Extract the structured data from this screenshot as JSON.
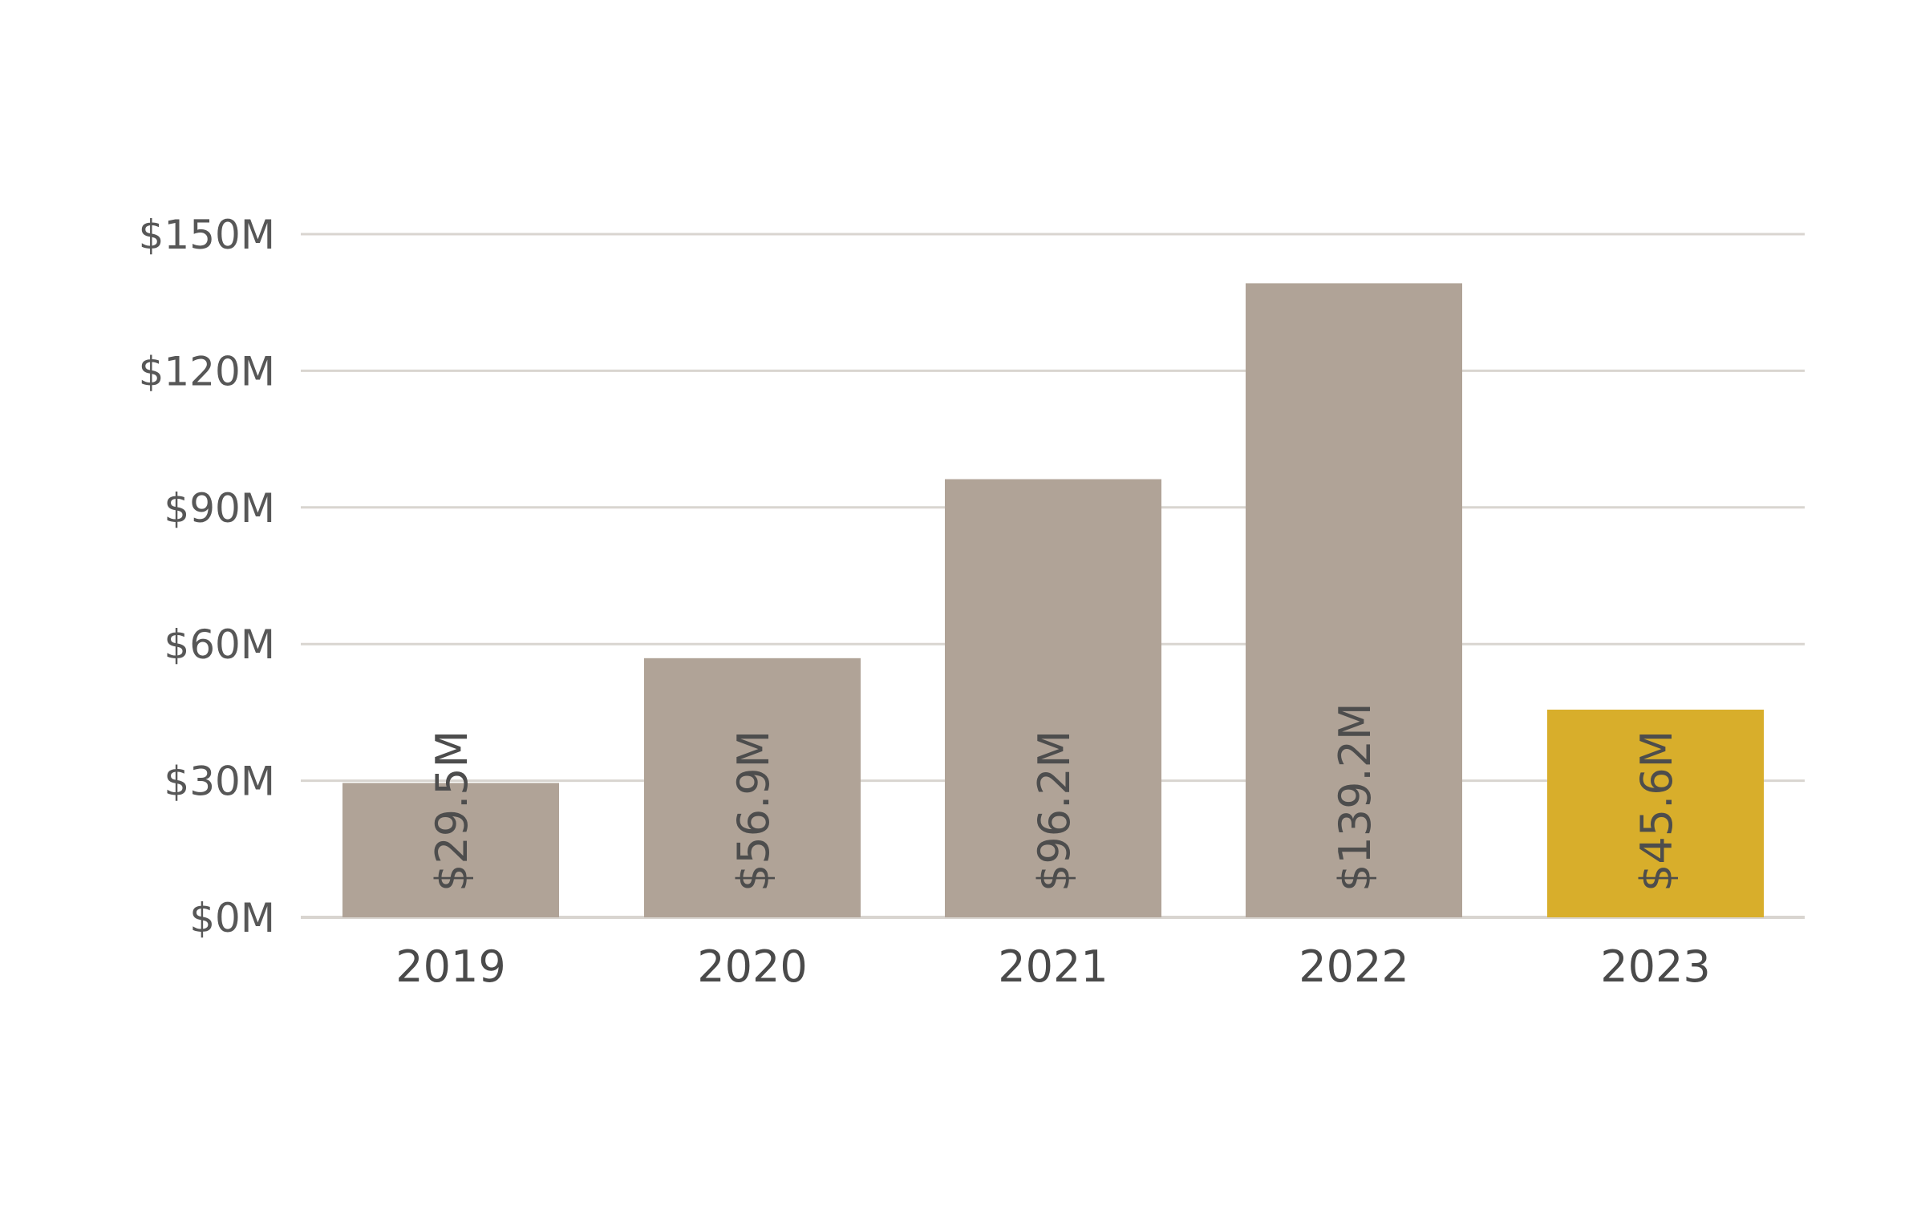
{
  "chart_data": {
    "type": "bar",
    "categories": [
      "2019",
      "2020",
      "2021",
      "2022",
      "2023"
    ],
    "values": [
      29.5,
      56.9,
      96.2,
      139.2,
      45.6
    ],
    "value_labels": [
      "$29.5M",
      "$56.9M",
      "$96.2M",
      "$139.2M",
      "$45.6M"
    ],
    "yticks": [
      0,
      30,
      60,
      90,
      120,
      150
    ],
    "ytick_labels": [
      "$0M",
      "$30M",
      "$60M",
      "$90M",
      "$120M",
      "$150M"
    ],
    "ylim": [
      0,
      150
    ],
    "title": "",
    "xlabel": "",
    "ylabel": "",
    "grid": true,
    "legend": "none",
    "colors": {
      "default_bar": "#b0a397",
      "highlight_bar": "#d8ae2b",
      "grid": "#d9d5d0",
      "text": "#4d4d4d"
    },
    "highlight_category": "2023"
  }
}
